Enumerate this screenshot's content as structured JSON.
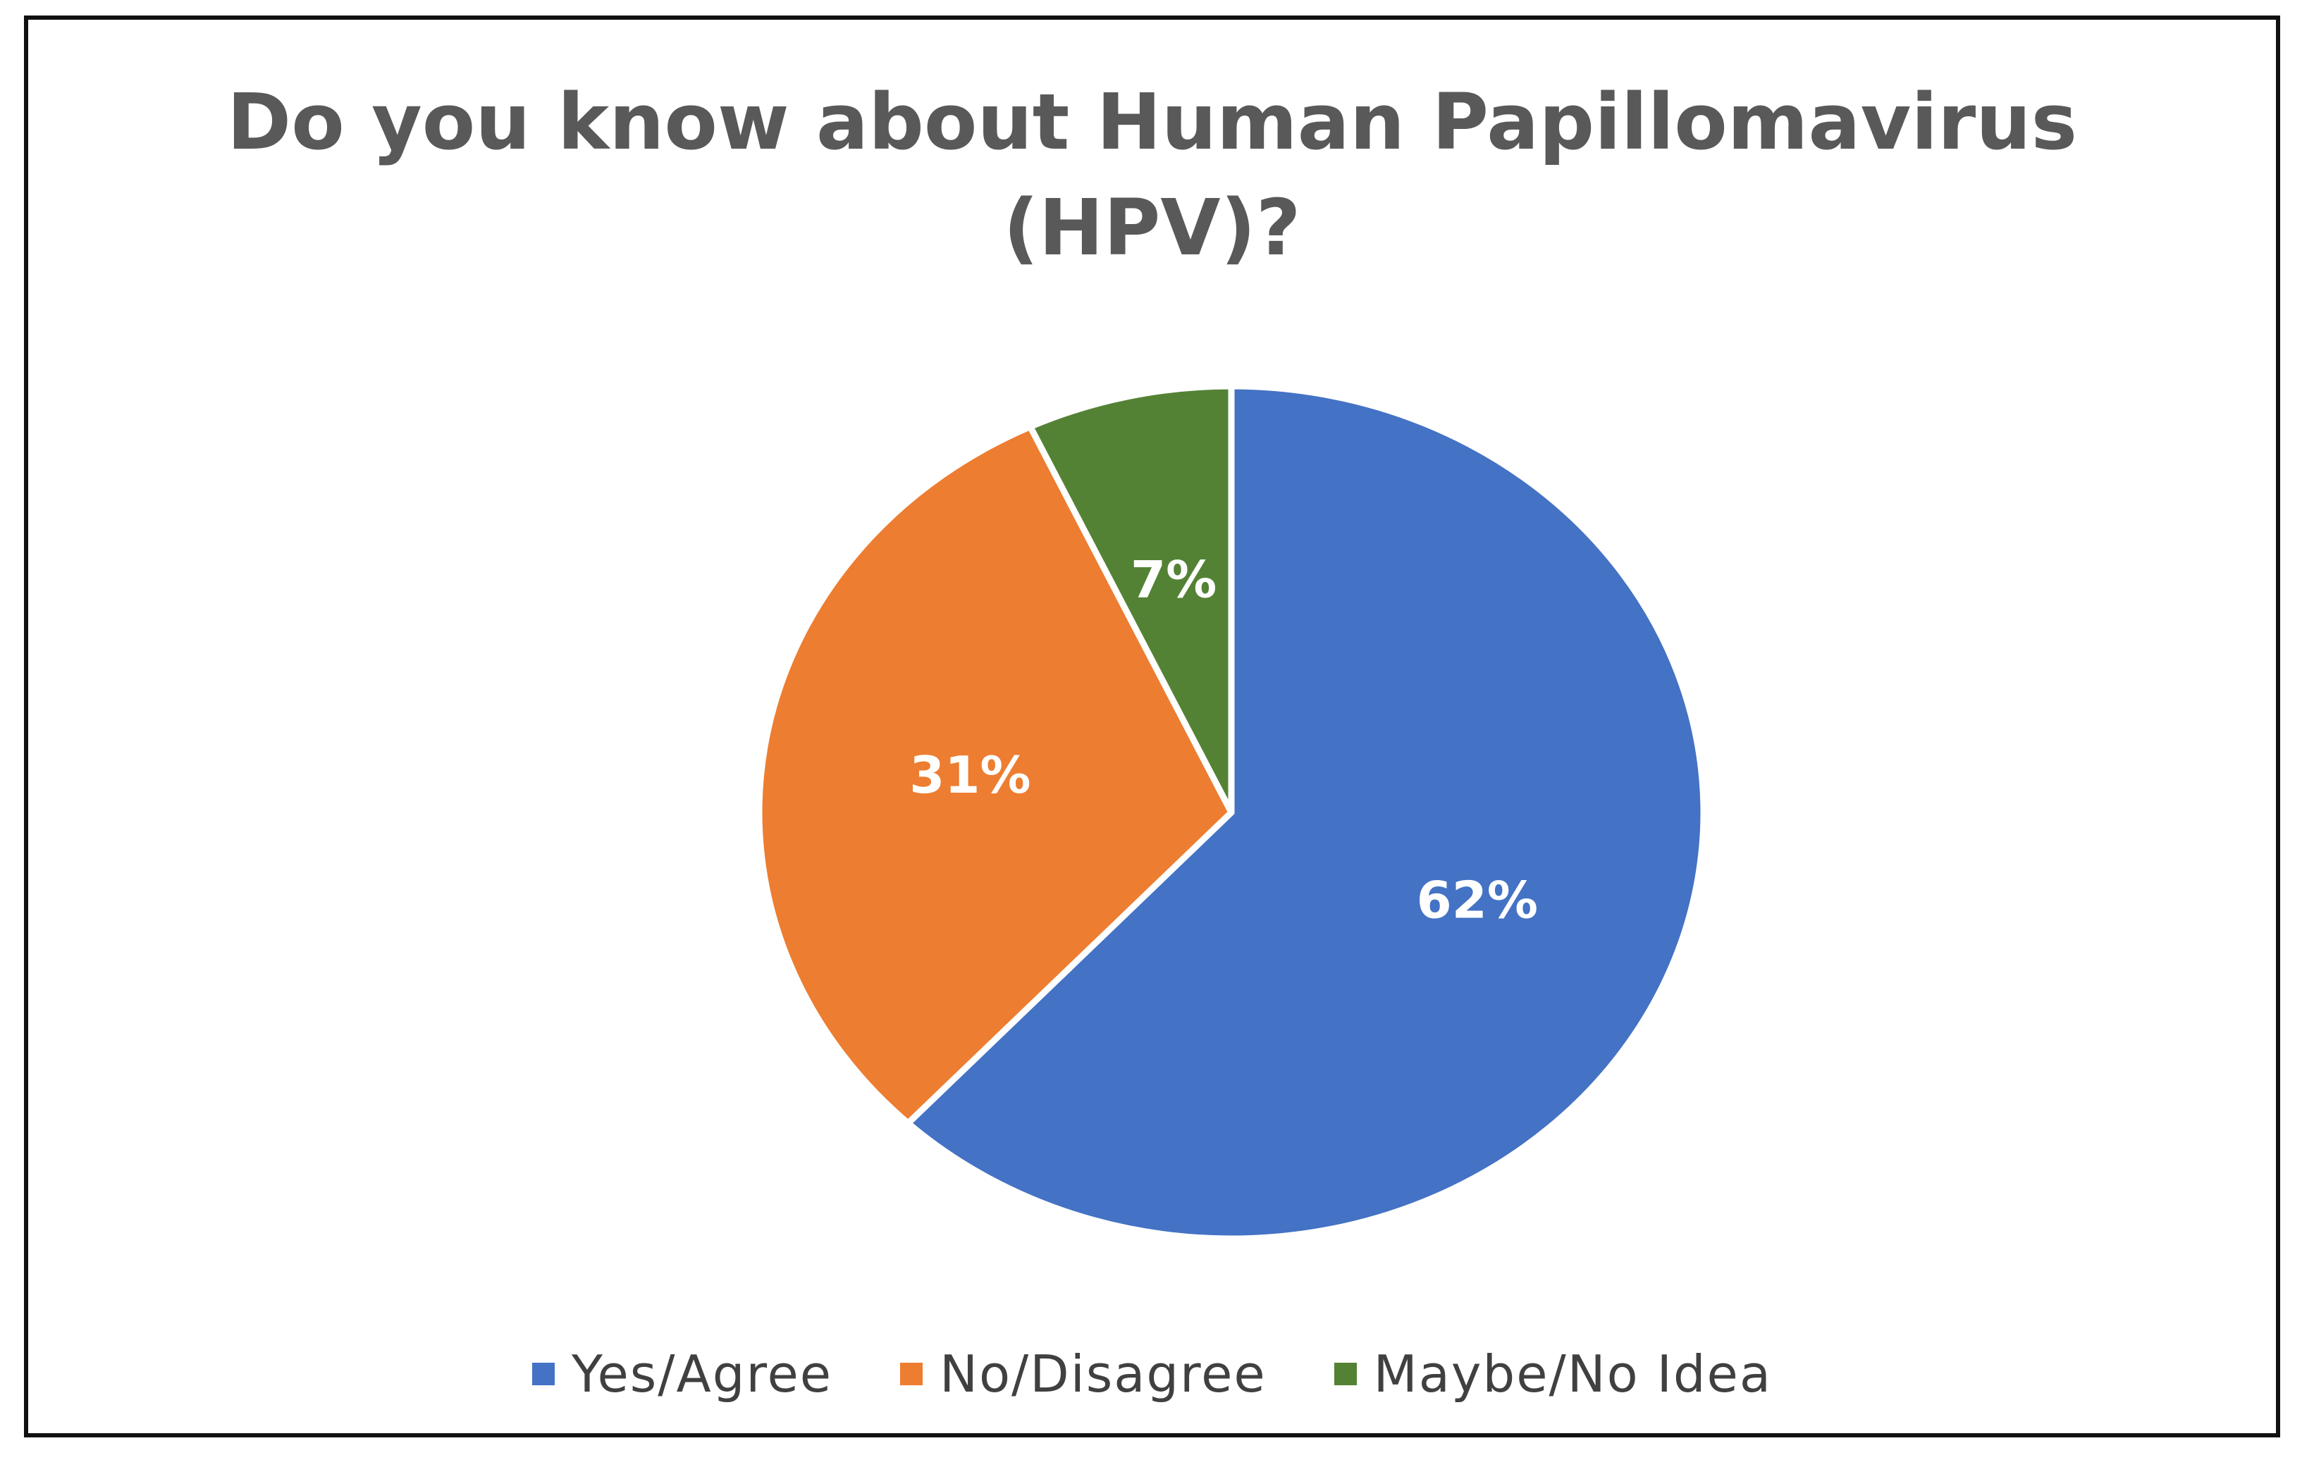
{
  "chart_data": {
    "type": "pie",
    "title": "Do you know about Human Papillomavirus (HPV)?",
    "title_lines": [
      "Do you know about Human Papillomavirus",
      "(HPV)?"
    ],
    "categories": [
      "Yes/Agree",
      "No/Disagree",
      "Maybe/No Idea"
    ],
    "values": [
      62,
      31,
      7
    ],
    "value_labels": [
      "62%",
      "31%",
      "7%"
    ],
    "colors": [
      "#4472C4",
      "#ED7D31",
      "#548235"
    ],
    "start_angle": "12 o'clock",
    "direction": "clockwise",
    "legend": "bottom",
    "legend_items": [
      {
        "label": "Yes/Agree",
        "color": "#4472C4"
      },
      {
        "label": "No/Disagree",
        "color": "#ED7D31"
      },
      {
        "label": "Maybe/No Idea",
        "color": "#548235"
      }
    ]
  }
}
